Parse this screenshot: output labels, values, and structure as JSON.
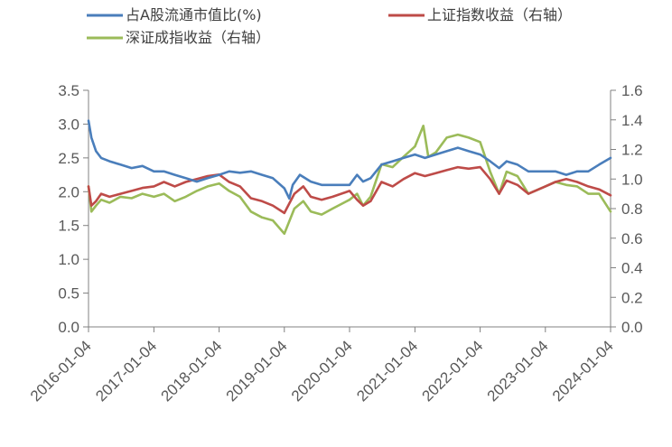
{
  "chart_data": {
    "type": "line",
    "x_ticks": [
      "2016-01-04",
      "2017-01-04",
      "2018-01-04",
      "2019-01-04",
      "2020-01-04",
      "2021-01-04",
      "2022-01-04",
      "2023-01-04",
      "2024-01-04"
    ],
    "y_left": {
      "ticks": [
        "0.0",
        "0.5",
        "1.0",
        "1.5",
        "2.0",
        "2.5",
        "3.0",
        "3.5"
      ],
      "ylim": [
        0,
        3.5
      ]
    },
    "y_right": {
      "ticks": [
        "0.0",
        "0.2",
        "0.4",
        "0.6",
        "0.8",
        "1.0",
        "1.2",
        "1.4",
        "1.6"
      ],
      "ylim": [
        0,
        1.6
      ]
    },
    "legend_position": "top",
    "grid": false,
    "series": [
      {
        "name": "占A股流通市值比(%)",
        "axis": "left",
        "color": "#4a7ebb",
        "points": [
          [
            "2016-01-04",
            3.05
          ],
          [
            "2016-01-20",
            2.8
          ],
          [
            "2016-02-15",
            2.6
          ],
          [
            "2016-03-15",
            2.5
          ],
          [
            "2016-05-01",
            2.45
          ],
          [
            "2016-07-01",
            2.4
          ],
          [
            "2016-09-01",
            2.35
          ],
          [
            "2016-11-01",
            2.38
          ],
          [
            "2017-01-04",
            2.3
          ],
          [
            "2017-03-01",
            2.3
          ],
          [
            "2017-05-01",
            2.25
          ],
          [
            "2017-07-01",
            2.2
          ],
          [
            "2017-09-01",
            2.15
          ],
          [
            "2017-11-01",
            2.2
          ],
          [
            "2018-01-04",
            2.25
          ],
          [
            "2018-03-01",
            2.3
          ],
          [
            "2018-05-01",
            2.28
          ],
          [
            "2018-07-01",
            2.3
          ],
          [
            "2018-09-01",
            2.25
          ],
          [
            "2018-11-01",
            2.2
          ],
          [
            "2019-01-04",
            2.05
          ],
          [
            "2019-02-01",
            1.9
          ],
          [
            "2019-02-20",
            2.1
          ],
          [
            "2019-04-01",
            2.25
          ],
          [
            "2019-06-01",
            2.15
          ],
          [
            "2019-08-01",
            2.1
          ],
          [
            "2019-10-01",
            2.1
          ],
          [
            "2020-01-04",
            2.1
          ],
          [
            "2020-02-15",
            2.25
          ],
          [
            "2020-03-20",
            2.15
          ],
          [
            "2020-05-01",
            2.2
          ],
          [
            "2020-07-01",
            2.4
          ],
          [
            "2020-09-01",
            2.45
          ],
          [
            "2020-11-01",
            2.5
          ],
          [
            "2021-01-04",
            2.55
          ],
          [
            "2021-03-01",
            2.5
          ],
          [
            "2021-05-01",
            2.55
          ],
          [
            "2021-07-01",
            2.6
          ],
          [
            "2021-09-01",
            2.65
          ],
          [
            "2021-11-01",
            2.6
          ],
          [
            "2022-01-04",
            2.55
          ],
          [
            "2022-03-01",
            2.45
          ],
          [
            "2022-04-20",
            2.35
          ],
          [
            "2022-06-01",
            2.45
          ],
          [
            "2022-08-01",
            2.4
          ],
          [
            "2022-10-01",
            2.3
          ],
          [
            "2023-01-04",
            2.3
          ],
          [
            "2023-03-01",
            2.3
          ],
          [
            "2023-05-01",
            2.25
          ],
          [
            "2023-07-01",
            2.3
          ],
          [
            "2023-09-01",
            2.3
          ],
          [
            "2023-11-01",
            2.4
          ],
          [
            "2024-01-04",
            2.5
          ]
        ]
      },
      {
        "name": "上证指数收益（右轴）",
        "axis": "right",
        "color": "#be4b48",
        "points": [
          [
            "2016-01-04",
            0.95
          ],
          [
            "2016-01-20",
            0.82
          ],
          [
            "2016-02-15",
            0.85
          ],
          [
            "2016-03-15",
            0.9
          ],
          [
            "2016-05-01",
            0.88
          ],
          [
            "2016-07-01",
            0.9
          ],
          [
            "2016-09-01",
            0.92
          ],
          [
            "2016-11-01",
            0.94
          ],
          [
            "2017-01-04",
            0.95
          ],
          [
            "2017-03-01",
            0.98
          ],
          [
            "2017-05-01",
            0.95
          ],
          [
            "2017-07-01",
            0.98
          ],
          [
            "2017-09-01",
            1.0
          ],
          [
            "2017-11-01",
            1.02
          ],
          [
            "2018-01-04",
            1.03
          ],
          [
            "2018-03-01",
            0.98
          ],
          [
            "2018-05-01",
            0.95
          ],
          [
            "2018-07-01",
            0.87
          ],
          [
            "2018-09-01",
            0.85
          ],
          [
            "2018-11-01",
            0.82
          ],
          [
            "2019-01-04",
            0.77
          ],
          [
            "2019-03-01",
            0.9
          ],
          [
            "2019-04-20",
            0.95
          ],
          [
            "2019-06-01",
            0.88
          ],
          [
            "2019-08-01",
            0.86
          ],
          [
            "2019-10-01",
            0.88
          ],
          [
            "2020-01-04",
            0.92
          ],
          [
            "2020-02-15",
            0.86
          ],
          [
            "2020-03-20",
            0.82
          ],
          [
            "2020-05-01",
            0.85
          ],
          [
            "2020-07-01",
            0.98
          ],
          [
            "2020-09-01",
            0.95
          ],
          [
            "2020-11-01",
            1.0
          ],
          [
            "2021-01-04",
            1.04
          ],
          [
            "2021-03-01",
            1.02
          ],
          [
            "2021-05-01",
            1.04
          ],
          [
            "2021-07-01",
            1.06
          ],
          [
            "2021-09-01",
            1.08
          ],
          [
            "2021-11-01",
            1.07
          ],
          [
            "2022-01-04",
            1.08
          ],
          [
            "2022-03-01",
            1.0
          ],
          [
            "2022-04-20",
            0.9
          ],
          [
            "2022-06-01",
            0.99
          ],
          [
            "2022-08-01",
            0.96
          ],
          [
            "2022-10-01",
            0.9
          ],
          [
            "2023-01-04",
            0.95
          ],
          [
            "2023-03-01",
            0.98
          ],
          [
            "2023-05-01",
            1.0
          ],
          [
            "2023-07-01",
            0.98
          ],
          [
            "2023-09-01",
            0.95
          ],
          [
            "2023-11-01",
            0.93
          ],
          [
            "2024-01-04",
            0.89
          ]
        ]
      },
      {
        "name": "深证成指收益（右轴）",
        "axis": "right",
        "color": "#9bbb59",
        "points": [
          [
            "2016-01-04",
            0.95
          ],
          [
            "2016-01-20",
            0.78
          ],
          [
            "2016-02-15",
            0.82
          ],
          [
            "2016-03-15",
            0.86
          ],
          [
            "2016-05-01",
            0.84
          ],
          [
            "2016-07-01",
            0.88
          ],
          [
            "2016-09-01",
            0.87
          ],
          [
            "2016-11-01",
            0.9
          ],
          [
            "2017-01-04",
            0.88
          ],
          [
            "2017-03-01",
            0.9
          ],
          [
            "2017-05-01",
            0.85
          ],
          [
            "2017-07-01",
            0.88
          ],
          [
            "2017-09-01",
            0.92
          ],
          [
            "2017-11-01",
            0.95
          ],
          [
            "2018-01-04",
            0.97
          ],
          [
            "2018-03-01",
            0.92
          ],
          [
            "2018-05-01",
            0.88
          ],
          [
            "2018-07-01",
            0.78
          ],
          [
            "2018-09-01",
            0.74
          ],
          [
            "2018-11-01",
            0.72
          ],
          [
            "2019-01-04",
            0.63
          ],
          [
            "2019-03-01",
            0.8
          ],
          [
            "2019-04-20",
            0.85
          ],
          [
            "2019-06-01",
            0.78
          ],
          [
            "2019-08-01",
            0.76
          ],
          [
            "2019-10-01",
            0.8
          ],
          [
            "2020-01-04",
            0.86
          ],
          [
            "2020-02-15",
            0.9
          ],
          [
            "2020-03-20",
            0.82
          ],
          [
            "2020-05-01",
            0.88
          ],
          [
            "2020-07-01",
            1.1
          ],
          [
            "2020-09-01",
            1.08
          ],
          [
            "2020-11-01",
            1.15
          ],
          [
            "2021-01-04",
            1.22
          ],
          [
            "2021-02-20",
            1.36
          ],
          [
            "2021-03-20",
            1.15
          ],
          [
            "2021-05-01",
            1.18
          ],
          [
            "2021-07-01",
            1.28
          ],
          [
            "2021-09-01",
            1.3
          ],
          [
            "2021-11-01",
            1.28
          ],
          [
            "2022-01-04",
            1.25
          ],
          [
            "2022-03-01",
            1.05
          ],
          [
            "2022-04-20",
            0.9
          ],
          [
            "2022-06-01",
            1.05
          ],
          [
            "2022-08-01",
            1.02
          ],
          [
            "2022-10-01",
            0.9
          ],
          [
            "2023-01-04",
            0.95
          ],
          [
            "2023-03-01",
            0.98
          ],
          [
            "2023-05-01",
            0.96
          ],
          [
            "2023-07-01",
            0.95
          ],
          [
            "2023-09-01",
            0.9
          ],
          [
            "2023-11-01",
            0.9
          ],
          [
            "2024-01-04",
            0.78
          ]
        ]
      }
    ]
  }
}
